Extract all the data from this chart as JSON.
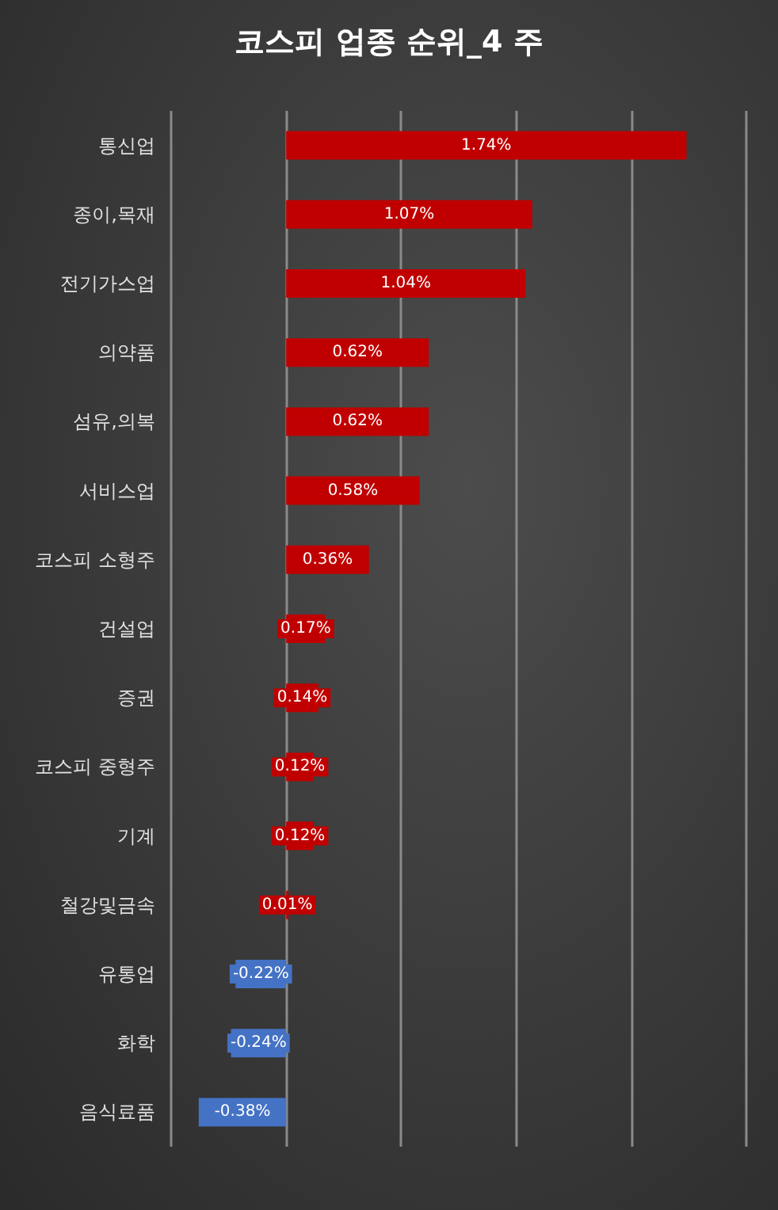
{
  "chart_data": {
    "type": "bar",
    "orientation": "horizontal",
    "title": "코스피 업종 순위_4 주",
    "categories": [
      "통신업",
      "종이,목재",
      "전기가스업",
      "의약품",
      "섬유,의복",
      "서비스업",
      "코스피 소형주",
      "건설업",
      "증권",
      "코스피 중형주",
      "기계",
      "철강및금속",
      "유통업",
      "화학",
      "음식료품"
    ],
    "values": [
      1.74,
      1.07,
      1.04,
      0.62,
      0.62,
      0.58,
      0.36,
      0.17,
      0.14,
      0.12,
      0.12,
      0.01,
      -0.22,
      -0.24,
      -0.38
    ],
    "value_labels": [
      "1.74%",
      "1.07%",
      "1.04%",
      "0.62%",
      "0.62%",
      "0.58%",
      "0.36%",
      "0.17%",
      "0.14%",
      "0.12%",
      "0.12%",
      "0.01%",
      "-0.22%",
      "-0.24%",
      "-0.38%"
    ],
    "colors": [
      "#c00000",
      "#c00000",
      "#c00000",
      "#c00000",
      "#c00000",
      "#c00000",
      "#c00000",
      "#c00000",
      "#c00000",
      "#c00000",
      "#c00000",
      "#c00000",
      "#4472c4",
      "#4472c4",
      "#4472c4"
    ],
    "xlim": [
      -0.5,
      2.0
    ],
    "xticks": [
      -0.5,
      0,
      0.5,
      1,
      1.5,
      2
    ],
    "grid": "x",
    "tick_labels": "y"
  }
}
